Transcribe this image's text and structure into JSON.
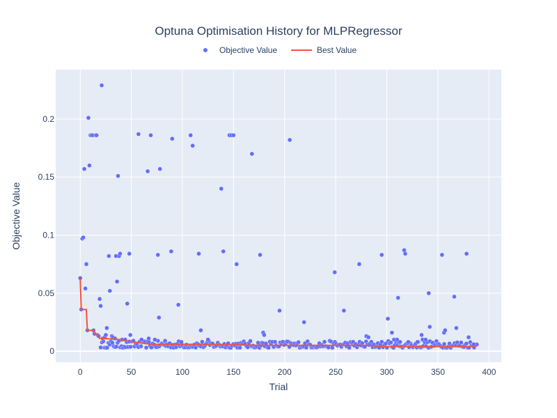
{
  "chart_data": {
    "type": "scatter",
    "title": "Optuna Optimisation History for MLPRegressor",
    "xlabel": "Trial",
    "ylabel": "Objective Value",
    "xlim": [
      -24,
      412
    ],
    "ylim": [
      -0.0095,
      0.2425
    ],
    "xticks": [
      0,
      50,
      100,
      150,
      200,
      250,
      300,
      350,
      400
    ],
    "yticks": [
      0,
      0.05,
      0.1,
      0.15,
      0.2
    ],
    "ytick_labels": [
      "0",
      "0.05",
      "0.1",
      "0.15",
      "0.2"
    ],
    "grid": true,
    "legend_position": "top-center",
    "colors": {
      "objective": "#636efa",
      "best": "#ef553b",
      "plot_bg": "#e5ecf6",
      "grid": "#ffffff",
      "text": "#2a3f5f"
    },
    "series": [
      {
        "name": "Objective Value",
        "mode": "markers",
        "points": [
          [
            0,
            0.063
          ],
          [
            1,
            0.036
          ],
          [
            2,
            0.097
          ],
          [
            3,
            0.098
          ],
          [
            4,
            0.157
          ],
          [
            5,
            0.054
          ],
          [
            6,
            0.075
          ],
          [
            7,
            0.018
          ],
          [
            8,
            0.201
          ],
          [
            9,
            0.16
          ],
          [
            10,
            0.186
          ],
          [
            11,
            0.186
          ],
          [
            12,
            0.186
          ],
          [
            13,
            0.018
          ],
          [
            14,
            0.015
          ],
          [
            15,
            0.186
          ],
          [
            16,
            0.186
          ],
          [
            17,
            0.014
          ],
          [
            18,
            0.013
          ],
          [
            19,
            0.045
          ],
          [
            20,
            0.039
          ],
          [
            21,
            0.229
          ],
          [
            22,
            0.011
          ],
          [
            24,
            0.012
          ],
          [
            25,
            0.014
          ],
          [
            26,
            0.02
          ],
          [
            28,
            0.082
          ],
          [
            29,
            0.052
          ],
          [
            31,
            0.013
          ],
          [
            32,
            0.012
          ],
          [
            34,
            0.011
          ],
          [
            35,
            0.082
          ],
          [
            36,
            0.06
          ],
          [
            37,
            0.151
          ],
          [
            38,
            0.082
          ],
          [
            39,
            0.084
          ],
          [
            41,
            0.01
          ],
          [
            44,
            0.01
          ],
          [
            46,
            0.041
          ],
          [
            48,
            0.084
          ],
          [
            49,
            0.014
          ],
          [
            52,
            0.009
          ],
          [
            57,
            0.187
          ],
          [
            60,
            0.01
          ],
          [
            66,
            0.155
          ],
          [
            67,
            0.011
          ],
          [
            69,
            0.186
          ],
          [
            73,
            0.01
          ],
          [
            76,
            0.083
          ],
          [
            77,
            0.029
          ],
          [
            78,
            0.157
          ],
          [
            83,
            0.009
          ],
          [
            89,
            0.086
          ],
          [
            90,
            0.183
          ],
          [
            96,
            0.04
          ],
          [
            99,
            0.008
          ],
          [
            108,
            0.186
          ],
          [
            110,
            0.177
          ],
          [
            116,
            0.084
          ],
          [
            118,
            0.018
          ],
          [
            125,
            0.01
          ],
          [
            138,
            0.14
          ],
          [
            140,
            0.086
          ],
          [
            146,
            0.186
          ],
          [
            148,
            0.186
          ],
          [
            150,
            0.186
          ],
          [
            153,
            0.075
          ],
          [
            168,
            0.17
          ],
          [
            176,
            0.083
          ],
          [
            179,
            0.016
          ],
          [
            180,
            0.014
          ],
          [
            195,
            0.035
          ],
          [
            205,
            0.182
          ],
          [
            219,
            0.025
          ],
          [
            249,
            0.068
          ],
          [
            258,
            0.035
          ],
          [
            273,
            0.075
          ],
          [
            280,
            0.013
          ],
          [
            282,
            0.012
          ],
          [
            295,
            0.083
          ],
          [
            301,
            0.028
          ],
          [
            305,
            0.016
          ],
          [
            307,
            0.01
          ],
          [
            310,
            0.01
          ],
          [
            311,
            0.046
          ],
          [
            313,
            0.008
          ],
          [
            317,
            0.087
          ],
          [
            318,
            0.084
          ],
          [
            321,
            0.008
          ],
          [
            330,
            0.008
          ],
          [
            334,
            0.014
          ],
          [
            335,
            0.01
          ],
          [
            338,
            0.01
          ],
          [
            341,
            0.05
          ],
          [
            342,
            0.021
          ],
          [
            354,
            0.083
          ],
          [
            356,
            0.016
          ],
          [
            357,
            0.018
          ],
          [
            366,
            0.047
          ],
          [
            368,
            0.02
          ],
          [
            378,
            0.084
          ],
          [
            380,
            0.012
          ],
          [
            385,
            0.006
          ]
        ],
        "bulk_band": {
          "x_range": [
            20,
            388
          ],
          "y_min": 0.003,
          "y_max": 0.009,
          "count": 290
        }
      },
      {
        "name": "Best Value",
        "mode": "lines",
        "points": [
          [
            0,
            0.063
          ],
          [
            1,
            0.036
          ],
          [
            6,
            0.036
          ],
          [
            7,
            0.018
          ],
          [
            13,
            0.018
          ],
          [
            14,
            0.015
          ],
          [
            17,
            0.014
          ],
          [
            18,
            0.013
          ],
          [
            19,
            0.011
          ],
          [
            22,
            0.011
          ],
          [
            40,
            0.01
          ],
          [
            44,
            0.009
          ],
          [
            52,
            0.008
          ],
          [
            60,
            0.007
          ],
          [
            70,
            0.006
          ],
          [
            85,
            0.006
          ],
          [
            100,
            0.006
          ],
          [
            130,
            0.006
          ],
          [
            175,
            0.005
          ],
          [
            230,
            0.005
          ],
          [
            280,
            0.005
          ],
          [
            300,
            0.004
          ],
          [
            345,
            0.004
          ],
          [
            387,
            0.004
          ]
        ]
      }
    ]
  }
}
